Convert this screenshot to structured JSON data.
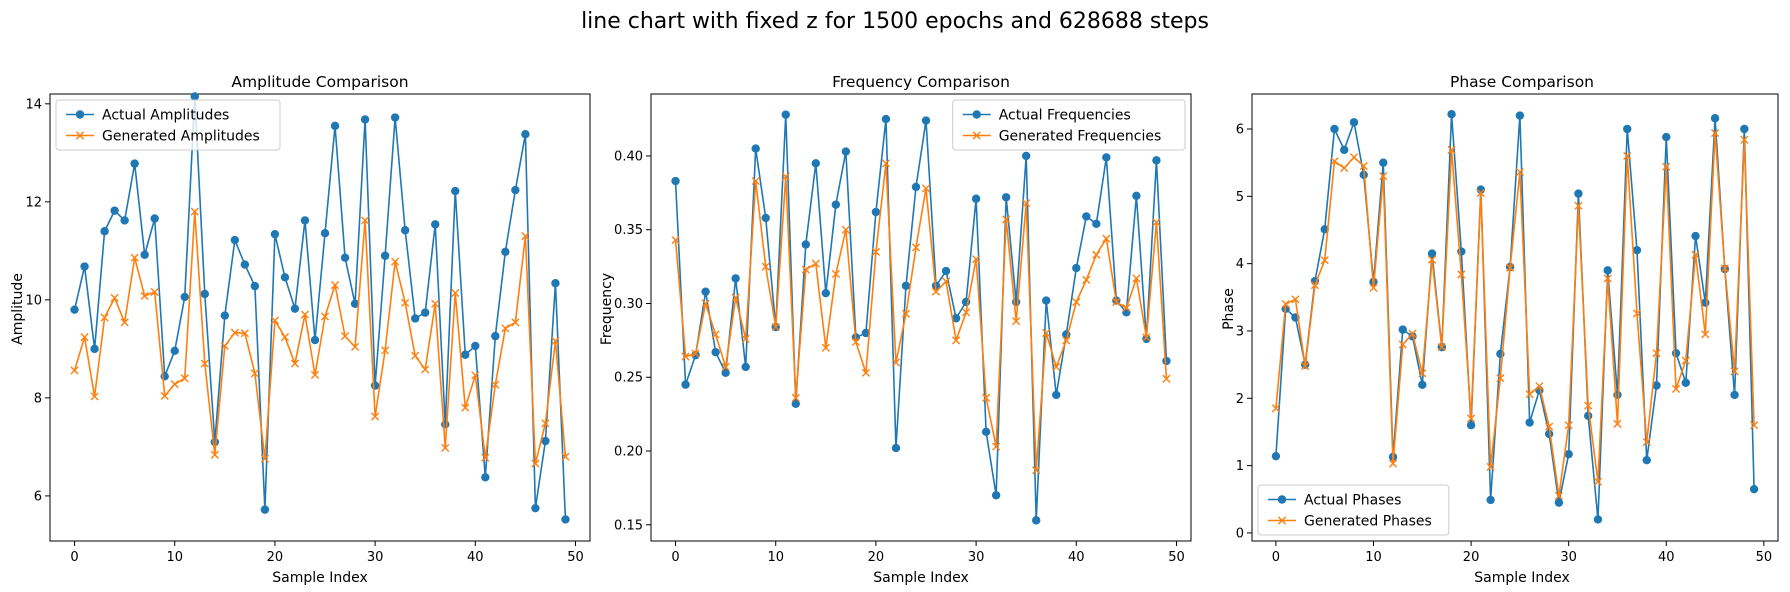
{
  "figure": {
    "suptitle": "line chart with fixed z for 1500 epochs and 628688 steps"
  },
  "chart_data": [
    {
      "type": "line",
      "title": "Amplitude Comparison",
      "xlabel": "Sample Index",
      "ylabel": "Amplitude",
      "xlim": [
        -2.45,
        51.45
      ],
      "ylim": [
        5.08,
        14.2
      ],
      "xticks": [
        0,
        10,
        20,
        30,
        40,
        50
      ],
      "yticks": [
        6,
        8,
        10,
        12,
        14
      ],
      "grid": false,
      "legend_position": "upper-left",
      "series": [
        {
          "name": "Actual Amplitudes",
          "color": "#1f77b4",
          "marker": "circle",
          "values": [
            9.8,
            10.68,
            9.0,
            11.4,
            11.82,
            11.62,
            12.78,
            10.92,
            11.66,
            8.44,
            8.96,
            10.06,
            14.15,
            10.12,
            7.1,
            9.68,
            11.22,
            10.72,
            10.28,
            5.72,
            11.34,
            10.46,
            9.82,
            11.62,
            9.18,
            11.36,
            13.55,
            10.86,
            9.92,
            13.68,
            8.25,
            10.9,
            13.72,
            11.42,
            9.62,
            9.74,
            11.54,
            7.46,
            12.22,
            8.88,
            9.06,
            6.38,
            9.26,
            10.98,
            12.24,
            13.38,
            5.75,
            7.12,
            10.34,
            5.52
          ]
        },
        {
          "name": "Generated Amplitudes",
          "color": "#ff7f0e",
          "marker": "x",
          "values": [
            8.56,
            9.24,
            8.03,
            9.64,
            10.04,
            9.54,
            10.86,
            10.08,
            10.16,
            8.04,
            8.28,
            8.4,
            11.8,
            8.7,
            6.84,
            9.06,
            9.33,
            9.32,
            8.5,
            6.76,
            9.58,
            9.24,
            8.7,
            9.7,
            8.47,
            9.66,
            10.3,
            9.26,
            9.04,
            11.62,
            7.62,
            8.97,
            10.78,
            9.94,
            8.86,
            8.58,
            9.92,
            6.98,
            10.14,
            7.8,
            8.46,
            6.78,
            8.27,
            9.42,
            9.54,
            11.3,
            6.66,
            7.48,
            9.16,
            6.8
          ]
        }
      ]
    },
    {
      "type": "line",
      "title": "Frequency Comparison",
      "xlabel": "Sample Index",
      "ylabel": "Frequency",
      "xlim": [
        -2.45,
        51.45
      ],
      "ylim": [
        0.139,
        0.442
      ],
      "xticks": [
        0,
        10,
        20,
        30,
        40,
        50
      ],
      "yticks": [
        0.15,
        0.2,
        0.25,
        0.3,
        0.35,
        0.4
      ],
      "ytick_labels": [
        "0.15",
        "0.20",
        "0.25",
        "0.30",
        "0.35",
        "0.40"
      ],
      "grid": false,
      "legend_position": "upper-right",
      "series": [
        {
          "name": "Actual Frequencies",
          "color": "#1f77b4",
          "marker": "circle",
          "values": [
            0.383,
            0.245,
            0.265,
            0.308,
            0.267,
            0.253,
            0.317,
            0.257,
            0.405,
            0.358,
            0.284,
            0.428,
            0.232,
            0.34,
            0.395,
            0.307,
            0.367,
            0.403,
            0.277,
            0.28,
            0.362,
            0.425,
            0.202,
            0.312,
            0.379,
            0.424,
            0.312,
            0.322,
            0.29,
            0.301,
            0.371,
            0.213,
            0.17,
            0.372,
            0.301,
            0.4,
            0.153,
            0.302,
            0.238,
            0.279,
            0.324,
            0.359,
            0.354,
            0.399,
            0.302,
            0.294,
            0.373,
            0.276,
            0.397,
            0.261
          ]
        },
        {
          "name": "Generated Frequencies",
          "color": "#ff7f0e",
          "marker": "x",
          "values": [
            0.343,
            0.264,
            0.266,
            0.3,
            0.279,
            0.257,
            0.304,
            0.276,
            0.383,
            0.325,
            0.284,
            0.386,
            0.236,
            0.323,
            0.327,
            0.27,
            0.32,
            0.35,
            0.274,
            0.253,
            0.335,
            0.395,
            0.26,
            0.293,
            0.338,
            0.378,
            0.308,
            0.315,
            0.275,
            0.294,
            0.33,
            0.236,
            0.203,
            0.357,
            0.288,
            0.368,
            0.187,
            0.28,
            0.257,
            0.275,
            0.301,
            0.316,
            0.333,
            0.344,
            0.301,
            0.297,
            0.317,
            0.277,
            0.355,
            0.249
          ]
        }
      ]
    },
    {
      "type": "line",
      "title": "Phase Comparison",
      "xlabel": "Sample Index",
      "ylabel": "Phase",
      "xlim": [
        -2.45,
        51.45
      ],
      "ylim": [
        -0.12,
        6.52
      ],
      "xticks": [
        0,
        10,
        20,
        30,
        40,
        50
      ],
      "yticks": [
        0,
        1,
        2,
        3,
        4,
        5,
        6
      ],
      "grid": false,
      "legend_position": "lower-left",
      "series": [
        {
          "name": "Actual Phases",
          "color": "#1f77b4",
          "marker": "circle",
          "values": [
            1.14,
            3.33,
            3.2,
            2.5,
            3.74,
            4.51,
            6.0,
            5.69,
            6.1,
            5.32,
            3.73,
            5.5,
            1.13,
            3.02,
            2.92,
            2.2,
            4.15,
            2.76,
            6.22,
            4.18,
            1.6,
            5.1,
            0.49,
            2.66,
            3.95,
            6.2,
            1.64,
            2.12,
            1.47,
            0.45,
            1.17,
            5.04,
            1.74,
            0.2,
            3.9,
            2.05,
            6.0,
            4.2,
            1.08,
            2.19,
            5.88,
            2.67,
            2.23,
            4.41,
            3.42,
            6.16,
            3.92,
            2.05,
            6.0,
            0.65
          ]
        },
        {
          "name": "Generated Phases",
          "color": "#ff7f0e",
          "marker": "x",
          "values": [
            1.85,
            3.4,
            3.47,
            2.48,
            3.68,
            4.05,
            5.52,
            5.42,
            5.58,
            5.45,
            3.64,
            5.3,
            1.03,
            2.8,
            2.96,
            2.37,
            4.06,
            2.76,
            5.69,
            3.84,
            1.7,
            5.05,
            0.98,
            2.3,
            3.94,
            5.36,
            2.06,
            2.18,
            1.58,
            0.55,
            1.6,
            4.86,
            1.89,
            0.76,
            3.78,
            1.62,
            5.6,
            3.26,
            1.35,
            2.67,
            5.44,
            2.14,
            2.56,
            4.13,
            2.95,
            5.94,
            3.93,
            2.4,
            5.84,
            1.6
          ]
        }
      ]
    }
  ]
}
